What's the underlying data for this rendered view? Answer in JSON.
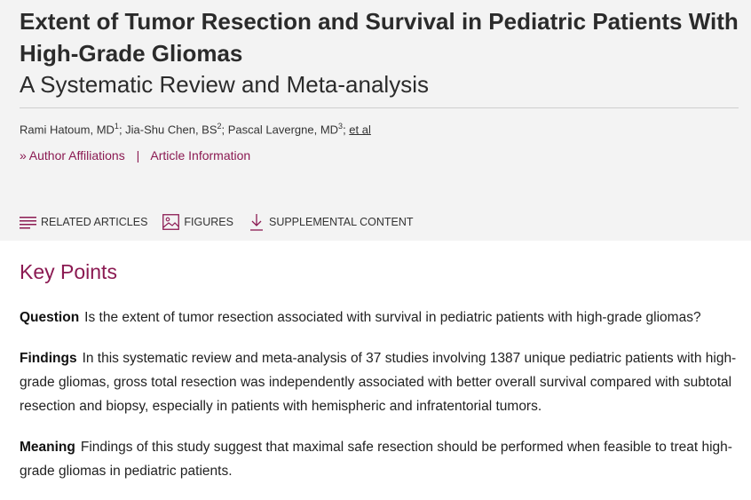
{
  "article": {
    "title": "Extent of Tumor Resection and Survival in Pediatric Patients With High-Grade Gliomas",
    "subtitle": "A Systematic Review and Meta-analysis",
    "authors": [
      {
        "name": "Rami Hatoum, MD",
        "sup": "1"
      },
      {
        "name": "Jia-Shu Chen, BS",
        "sup": "2"
      },
      {
        "name": "Pascal Lavergne, MD",
        "sup": "3"
      }
    ],
    "et_al": "et al",
    "author_affiliations": "Author Affiliations",
    "separator": "|",
    "article_information": "Article Information"
  },
  "tools": {
    "related": "RELATED ARTICLES",
    "figures": "FIGURES",
    "supplemental": "SUPPLEMENTAL CONTENT"
  },
  "key_points": {
    "heading": "Key Points",
    "items": [
      {
        "label": "Question",
        "text": "Is the extent of tumor resection associated with survival in pediatric patients with high-grade gliomas?"
      },
      {
        "label": "Findings",
        "text": "In this systematic review and meta-analysis of 37 studies involving 1387 unique pediatric patients with high-grade gliomas, gross total resection was independently associated with better overall survival compared with subtotal resection and biopsy, especially in patients with hemispheric and infratentorial tumors."
      },
      {
        "label": "Meaning",
        "text": "Findings of this study suggest that maximal safe resection should be performed when feasible to treat high-grade gliomas in pediatric patients."
      }
    ]
  },
  "colors": {
    "accent": "#8b1a52",
    "header_bg": "#f3f3f3"
  }
}
